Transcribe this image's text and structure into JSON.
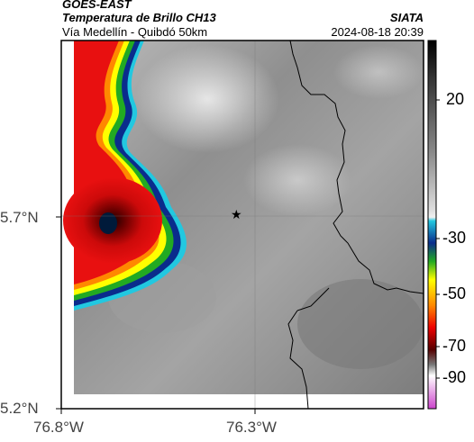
{
  "header": {
    "source": "GOES-EAST",
    "product": "Temperatura de Brillo CH13",
    "organization": "SIATA",
    "route": "Vía Medellín - Quibdó 50km",
    "datetime": "2024-08-18 20:39"
  },
  "axes": {
    "y_ticks": [
      {
        "label": "5.7°N",
        "value": 5.7
      },
      {
        "label": "5.2°N",
        "value": 5.2
      }
    ],
    "x_ticks": [
      {
        "label": "76.8°W",
        "value": -76.8
      },
      {
        "label": "76.3°W",
        "value": -76.3
      }
    ]
  },
  "colorbar": {
    "ticks": [
      "20",
      "-30",
      "-50",
      "-70",
      "-90"
    ],
    "colors": {
      "warm_top": "#000000",
      "gray_mid": "#9a9a9a",
      "white": "#f0f0f0",
      "cyan": "#22c8e0",
      "blue": "#0a2c8c",
      "green": "#22aa22",
      "yellow": "#ffff00",
      "orange": "#ff8800",
      "red": "#ee0000",
      "dark_red": "#550000",
      "magenta": "#cc44cc"
    }
  },
  "marker": {
    "symbol": "★"
  },
  "colors": {
    "background_gray": "#8c8c8c",
    "cloud_red": "#e01010",
    "cloud_dark": "#2a0000",
    "border_line": "#000000"
  }
}
